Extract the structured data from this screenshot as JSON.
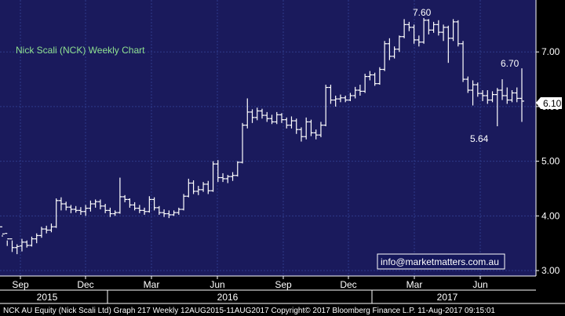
{
  "colors": {
    "plot_bg": "#1a1a5c",
    "grid": "#2f3a8a",
    "bars": "#ffffff",
    "title": "#8fe08f",
    "email_bg": "#15175a"
  },
  "chart_data": {
    "type": "ohlc",
    "title": "Nick Scali (NCK) Weekly Chart",
    "y_ticks": [
      "3.00",
      "4.00",
      "5.00",
      "6.00",
      "7.00"
    ],
    "ylim": [
      2.9,
      7.95
    ],
    "x_month_ticks": [
      "Sep",
      "Dec",
      "Mar",
      "Jun",
      "Sep",
      "Dec",
      "Mar",
      "Jun"
    ],
    "x_year_labels": [
      "2015",
      "2016",
      "2017"
    ],
    "last_price": "6.10",
    "annotations": {
      "high": "7.60",
      "recent_high": "6.70",
      "low": "5.64"
    },
    "grid": true,
    "footer": "NCK AU Equity (Nick Scali Ltd) Graph 217  Weekly 12AUG2015-11AUG2017 Copyright© 2017 Bloomberg Finance L.P.  11-Aug-2017 09:15:01",
    "watermark": "info@marketmatters.com.au",
    "weeks": [
      [
        3.8,
        3.65,
        3.62,
        3.67
      ],
      [
        3.68,
        3.55,
        3.45,
        3.58
      ],
      [
        3.58,
        3.55,
        3.34,
        3.42
      ],
      [
        3.42,
        3.48,
        3.3,
        3.44
      ],
      [
        3.45,
        3.58,
        3.35,
        3.52
      ],
      [
        3.52,
        3.55,
        3.42,
        3.46
      ],
      [
        3.46,
        3.62,
        3.44,
        3.58
      ],
      [
        3.58,
        3.68,
        3.5,
        3.64
      ],
      [
        3.64,
        3.8,
        3.6,
        3.76
      ],
      [
        3.76,
        3.82,
        3.68,
        3.74
      ],
      [
        3.74,
        3.86,
        3.7,
        3.8
      ],
      [
        3.8,
        4.32,
        3.78,
        4.28
      ],
      [
        4.28,
        4.34,
        4.1,
        4.22
      ],
      [
        4.22,
        4.26,
        4.1,
        4.16
      ],
      [
        4.16,
        4.2,
        4.05,
        4.12
      ],
      [
        4.12,
        4.18,
        4.06,
        4.1
      ],
      [
        4.1,
        4.16,
        4.02,
        4.08
      ],
      [
        4.08,
        4.2,
        4.0,
        4.14
      ],
      [
        4.14,
        4.28,
        4.08,
        4.22
      ],
      [
        4.22,
        4.3,
        4.15,
        4.26
      ],
      [
        4.26,
        4.3,
        4.12,
        4.18
      ],
      [
        4.18,
        4.22,
        4.05,
        4.1
      ],
      [
        4.1,
        4.15,
        3.98,
        4.04
      ],
      [
        4.04,
        4.1,
        4.0,
        4.06
      ],
      [
        4.06,
        4.7,
        4.04,
        4.35
      ],
      [
        4.35,
        4.38,
        4.25,
        4.3
      ],
      [
        4.3,
        4.32,
        4.15,
        4.2
      ],
      [
        4.2,
        4.25,
        4.1,
        4.14
      ],
      [
        4.14,
        4.2,
        4.05,
        4.1
      ],
      [
        4.1,
        4.15,
        4.02,
        4.08
      ],
      [
        4.08,
        4.36,
        4.06,
        4.3
      ],
      [
        4.3,
        4.34,
        4.1,
        4.15
      ],
      [
        4.15,
        4.18,
        4.02,
        4.06
      ],
      [
        4.06,
        4.12,
        3.98,
        4.04
      ],
      [
        4.04,
        4.1,
        3.96,
        4.02
      ],
      [
        4.02,
        4.1,
        4.0,
        4.06
      ],
      [
        4.06,
        4.15,
        4.02,
        4.12
      ],
      [
        4.12,
        4.4,
        4.1,
        4.36
      ],
      [
        4.36,
        4.68,
        4.34,
        4.6
      ],
      [
        4.6,
        4.65,
        4.4,
        4.45
      ],
      [
        4.45,
        4.55,
        4.38,
        4.48
      ],
      [
        4.48,
        4.62,
        4.44,
        4.58
      ],
      [
        4.58,
        4.64,
        4.4,
        4.46
      ],
      [
        4.46,
        5.0,
        4.44,
        4.95
      ],
      [
        4.95,
        5.02,
        4.62,
        4.7
      ],
      [
        4.7,
        4.78,
        4.62,
        4.68
      ],
      [
        4.68,
        4.75,
        4.6,
        4.72
      ],
      [
        4.72,
        4.8,
        4.64,
        4.74
      ],
      [
        4.74,
        5.0,
        4.72,
        4.98
      ],
      [
        4.98,
        5.7,
        4.96,
        5.66
      ],
      [
        5.66,
        6.15,
        5.6,
        5.9
      ],
      [
        5.9,
        5.95,
        5.7,
        5.8
      ],
      [
        5.8,
        5.98,
        5.75,
        5.92
      ],
      [
        5.92,
        5.96,
        5.78,
        5.84
      ],
      [
        5.84,
        5.9,
        5.72,
        5.78
      ],
      [
        5.78,
        5.85,
        5.68,
        5.72
      ],
      [
        5.72,
        5.9,
        5.68,
        5.85
      ],
      [
        5.85,
        5.88,
        5.7,
        5.76
      ],
      [
        5.76,
        5.8,
        5.6,
        5.66
      ],
      [
        5.66,
        5.82,
        5.6,
        5.74
      ],
      [
        5.74,
        5.78,
        5.5,
        5.58
      ],
      [
        5.58,
        5.62,
        5.36,
        5.45
      ],
      [
        5.45,
        5.8,
        5.4,
        5.72
      ],
      [
        5.72,
        5.76,
        5.46,
        5.52
      ],
      [
        5.52,
        5.58,
        5.4,
        5.48
      ],
      [
        5.48,
        5.72,
        5.44,
        5.66
      ],
      [
        5.66,
        6.4,
        5.64,
        6.35
      ],
      [
        6.35,
        6.4,
        6.05,
        6.12
      ],
      [
        6.12,
        6.2,
        6.0,
        6.14
      ],
      [
        6.14,
        6.22,
        6.08,
        6.16
      ],
      [
        6.16,
        6.2,
        6.08,
        6.12
      ],
      [
        6.12,
        6.25,
        6.1,
        6.2
      ],
      [
        6.2,
        6.36,
        6.15,
        6.3
      ],
      [
        6.3,
        6.4,
        6.2,
        6.28
      ],
      [
        6.28,
        6.6,
        6.25,
        6.55
      ],
      [
        6.55,
        6.65,
        6.48,
        6.58
      ],
      [
        6.58,
        6.62,
        6.38,
        6.42
      ],
      [
        6.42,
        6.72,
        6.4,
        6.68
      ],
      [
        6.68,
        7.2,
        6.65,
        7.15
      ],
      [
        7.15,
        7.25,
        6.85,
        6.92
      ],
      [
        6.92,
        7.1,
        6.88,
        7.05
      ],
      [
        7.05,
        7.3,
        7.0,
        7.28
      ],
      [
        7.28,
        7.6,
        7.25,
        7.5
      ],
      [
        7.5,
        7.55,
        7.38,
        7.45
      ],
      [
        7.45,
        7.5,
        7.15,
        7.22
      ],
      [
        7.22,
        7.3,
        7.1,
        7.18
      ],
      [
        7.18,
        7.62,
        7.15,
        7.58
      ],
      [
        7.58,
        7.6,
        7.32,
        7.4
      ],
      [
        7.4,
        7.55,
        7.35,
        7.5
      ],
      [
        7.5,
        7.58,
        7.3,
        7.36
      ],
      [
        7.36,
        7.5,
        7.2,
        7.45
      ],
      [
        7.45,
        7.48,
        6.8,
        7.25
      ],
      [
        7.25,
        7.6,
        7.2,
        7.55
      ],
      [
        7.55,
        7.58,
        7.1,
        7.15
      ],
      [
        7.15,
        7.2,
        6.45,
        6.5
      ],
      [
        6.5,
        6.55,
        6.25,
        6.3
      ],
      [
        6.3,
        6.48,
        6.02,
        6.4
      ],
      [
        6.4,
        6.44,
        6.18,
        6.24
      ],
      [
        6.24,
        6.3,
        6.1,
        6.2
      ],
      [
        6.2,
        6.3,
        6.05,
        6.12
      ],
      [
        6.12,
        6.28,
        6.08,
        6.22
      ],
      [
        6.22,
        6.34,
        5.64,
        6.3
      ],
      [
        6.3,
        6.5,
        6.12,
        6.2
      ],
      [
        6.2,
        6.35,
        6.05,
        6.12
      ],
      [
        6.12,
        6.3,
        6.08,
        6.25
      ],
      [
        6.25,
        6.35,
        6.08,
        6.15
      ],
      [
        6.15,
        6.7,
        5.72,
        6.1
      ]
    ]
  }
}
